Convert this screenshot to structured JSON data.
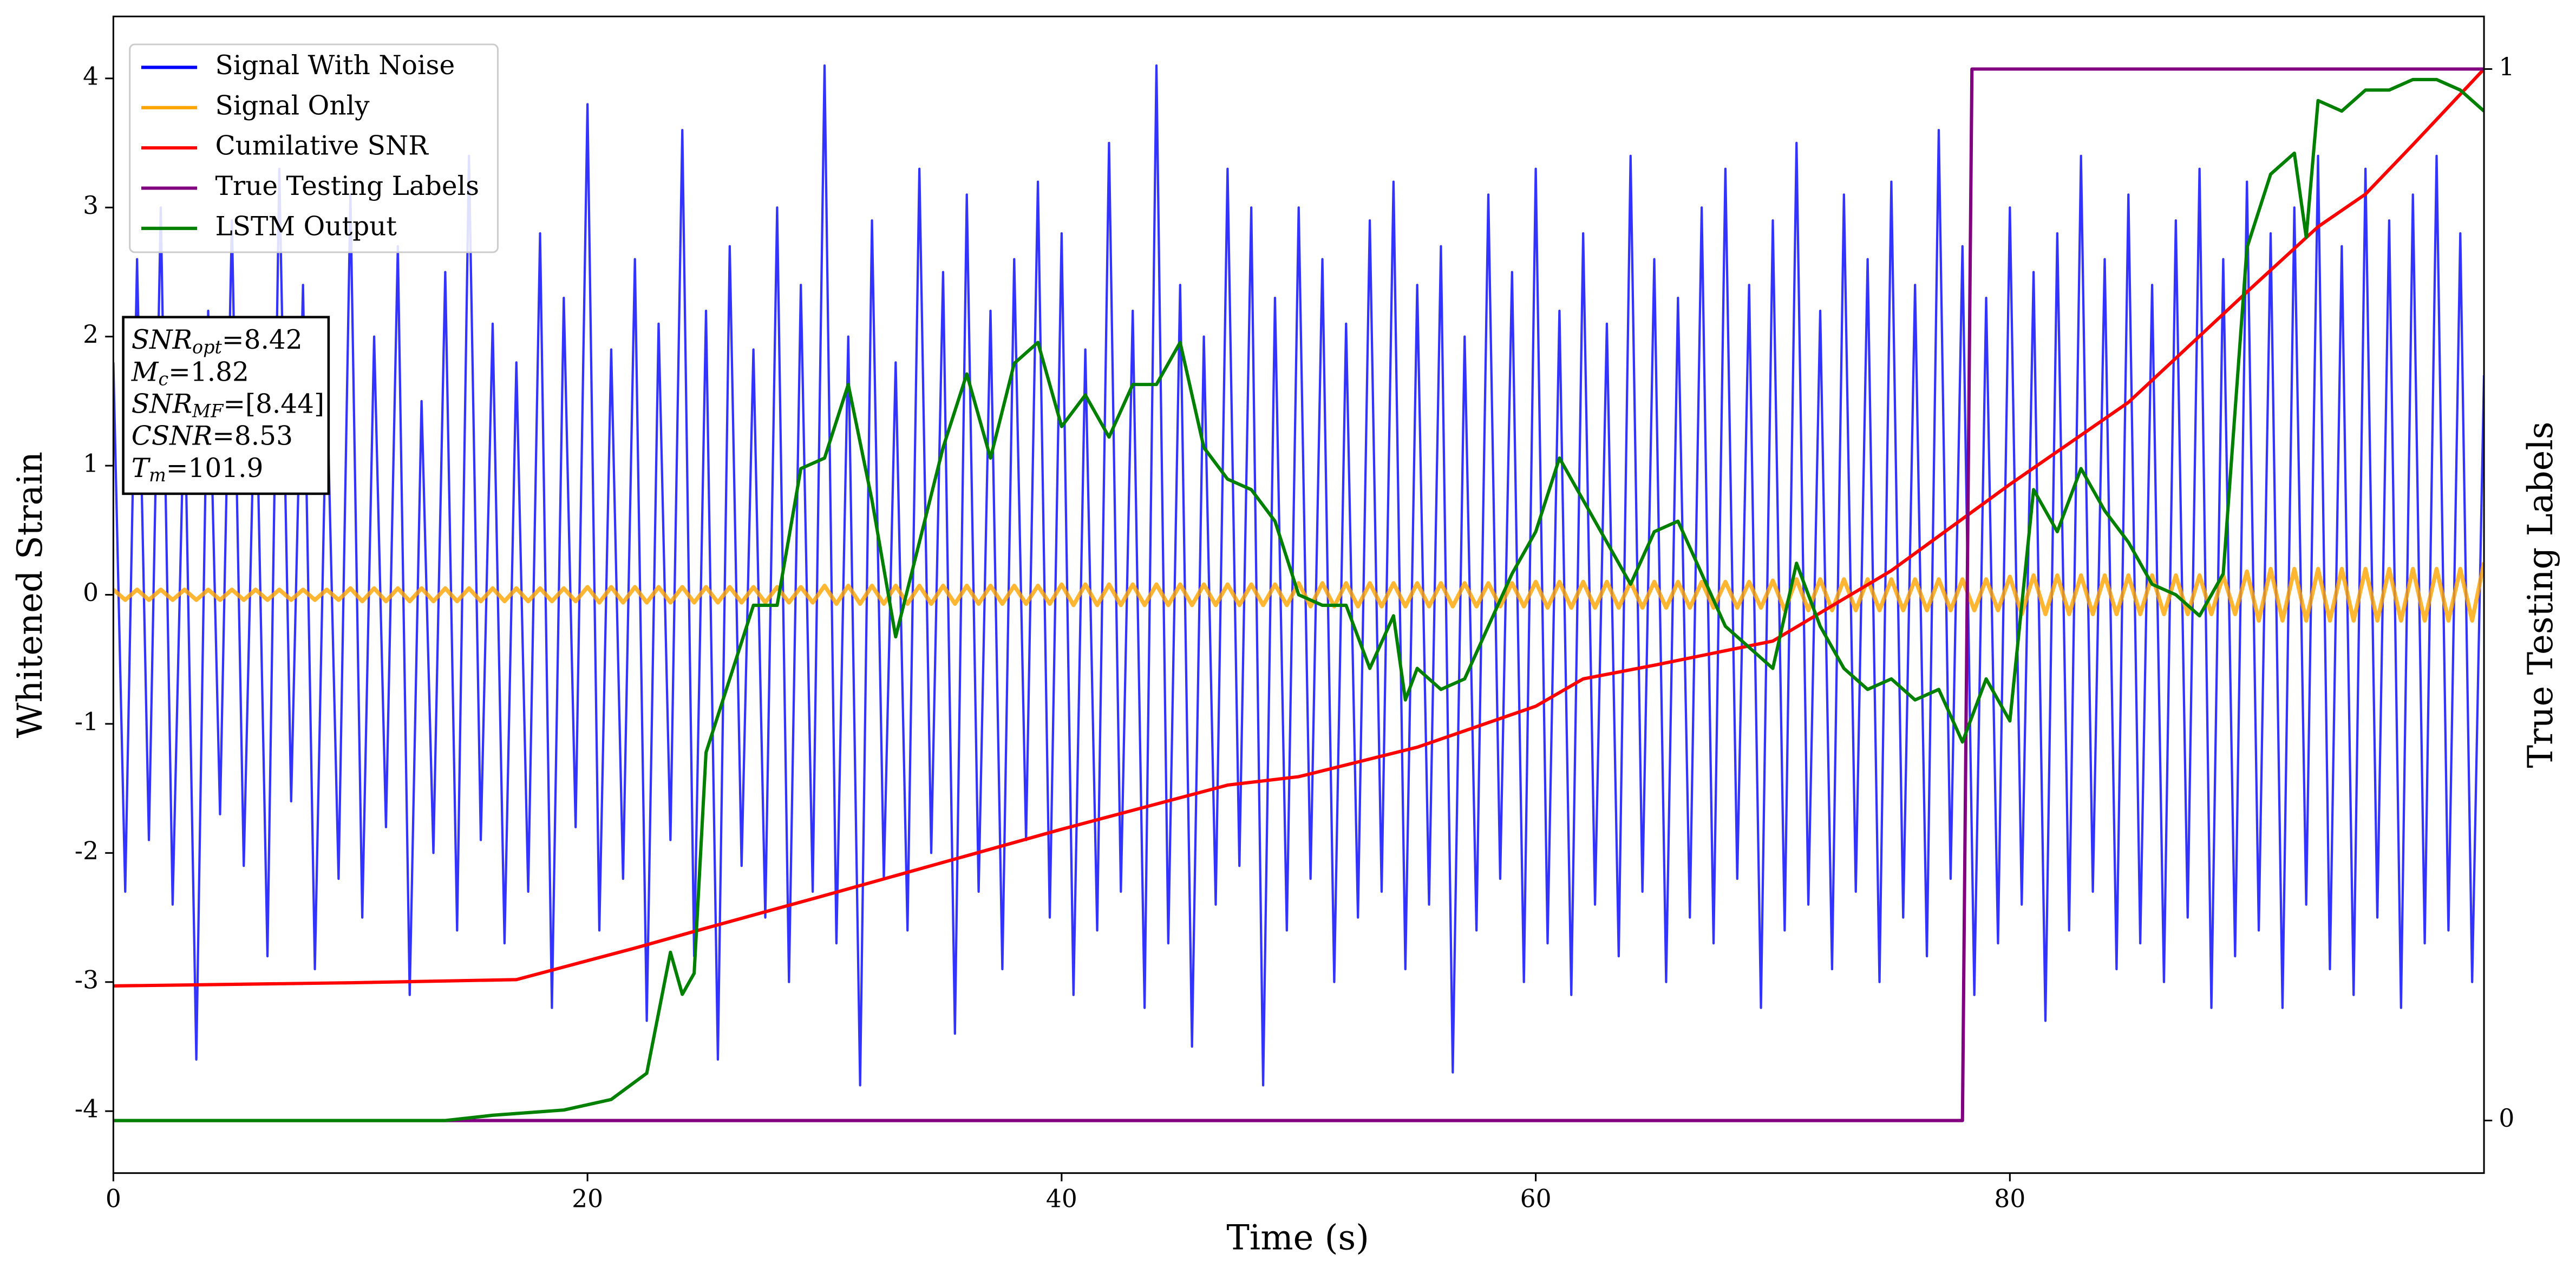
{
  "chart_data": {
    "type": "line",
    "xlabel": "Time (s)",
    "ylabel": "Whitened Strain",
    "y2label": "True Testing Labels",
    "xlim": [
      0,
      100
    ],
    "xticks": [
      0,
      20,
      40,
      60,
      80
    ],
    "ylim": [
      -4.48,
      4.48
    ],
    "yticks": [
      -4,
      -3,
      -2,
      -1,
      0,
      1,
      2,
      3,
      4
    ],
    "y2lim": [
      -0.05,
      1.05
    ],
    "y2ticks": [
      0,
      1
    ],
    "legend": "upper left",
    "x": [
      0,
      0.5,
      1,
      1.5,
      2,
      2.5,
      3,
      3.5,
      4,
      4.5,
      5,
      5.5,
      6,
      6.5,
      7,
      7.5,
      8,
      8.5,
      9,
      9.5,
      10,
      10.5,
      11,
      11.5,
      12,
      12.5,
      13,
      13.5,
      14,
      14.5,
      15,
      15.5,
      16,
      16.5,
      17,
      17.5,
      18,
      18.5,
      19,
      19.5,
      20,
      20.5,
      21,
      21.5,
      22,
      22.5,
      23,
      23.5,
      24,
      24.5,
      25,
      25.5,
      26,
      26.5,
      27,
      27.5,
      28,
      28.5,
      29,
      29.5,
      30,
      30.5,
      31,
      31.5,
      32,
      32.5,
      33,
      33.5,
      34,
      34.5,
      35,
      35.5,
      36,
      36.5,
      37,
      37.5,
      38,
      38.5,
      39,
      39.5,
      40,
      40.5,
      41,
      41.5,
      42,
      42.5,
      43,
      43.5,
      44,
      44.5,
      45,
      45.5,
      46,
      46.5,
      47,
      47.5,
      48,
      48.5,
      49,
      49.5,
      50,
      50.5,
      51,
      51.5,
      52,
      52.5,
      53,
      53.5,
      54,
      54.5,
      55,
      55.5,
      56,
      56.5,
      57,
      57.5,
      58,
      58.5,
      59,
      59.5,
      60,
      60.5,
      61,
      61.5,
      62,
      62.5,
      63,
      63.5,
      64,
      64.5,
      65,
      65.5,
      66,
      66.5,
      67,
      67.5,
      68,
      68.5,
      69,
      69.5,
      70,
      70.5,
      71,
      71.5,
      72,
      72.5,
      73,
      73.5,
      74,
      74.5,
      75,
      75.5,
      76,
      76.5,
      77,
      77.5,
      78,
      78.5,
      79,
      79.5,
      80,
      80.5,
      81,
      81.5,
      82,
      82.5,
      83,
      83.5,
      84,
      84.5,
      85,
      85.5,
      86,
      86.5,
      87,
      87.5,
      88,
      88.5,
      89,
      89.5,
      90,
      90.5,
      91,
      91.5,
      92,
      92.5,
      93,
      93.5,
      94,
      94.5,
      95,
      95.5,
      96,
      96.5,
      97,
      97.5,
      98,
      98.5,
      99,
      99.5,
      100
    ],
    "series": [
      {
        "name": "Signal With Noise",
        "color": "#0000ff",
        "alpha": 0.8,
        "width": 1.4,
        "values": [
          1.8,
          -2.3,
          2.6,
          -1.9,
          3.0,
          -2.4,
          1.6,
          -3.6,
          2.2,
          -1.7,
          2.9,
          -2.1,
          1.9,
          -2.8,
          3.3,
          -1.6,
          2.4,
          -2.9,
          1.7,
          -2.2,
          3.1,
          -2.5,
          2.0,
          -1.8,
          2.7,
          -3.1,
          1.5,
          -2.0,
          2.5,
          -2.6,
          3.4,
          -1.9,
          2.1,
          -2.7,
          1.8,
          -2.3,
          2.8,
          -3.2,
          2.3,
          -1.8,
          3.8,
          -2.6,
          1.9,
          -2.2,
          2.6,
          -3.3,
          2.1,
          -1.9,
          3.6,
          -2.8,
          2.2,
          -3.6,
          2.7,
          -2.1,
          1.9,
          -2.5,
          3.0,
          -3.0,
          2.4,
          -2.3,
          4.1,
          -2.7,
          2.0,
          -3.8,
          2.9,
          -2.2,
          1.8,
          -2.6,
          3.3,
          -2.0,
          2.5,
          -3.4,
          3.1,
          -2.3,
          2.2,
          -2.9,
          2.6,
          -1.9,
          3.2,
          -2.5,
          2.8,
          -3.1,
          1.9,
          -2.6,
          3.5,
          -2.3,
          2.2,
          -3.2,
          4.1,
          -2.7,
          2.4,
          -3.5,
          2.0,
          -2.4,
          3.3,
          -2.1,
          3.0,
          -3.8,
          2.3,
          -2.6,
          3.0,
          -2.2,
          2.6,
          -3.0,
          2.1,
          -2.5,
          2.9,
          -2.3,
          3.2,
          -2.9,
          2.4,
          -2.4,
          2.7,
          -3.7,
          2.0,
          -2.6,
          3.1,
          -2.2,
          2.5,
          -3.0,
          3.3,
          -2.7,
          2.2,
          -3.1,
          2.8,
          -2.4,
          2.1,
          -2.8,
          3.4,
          -2.3,
          2.6,
          -3.0,
          2.3,
          -2.5,
          3.0,
          -2.7,
          3.3,
          -2.2,
          2.4,
          -3.2,
          2.9,
          -2.6,
          3.5,
          -2.4,
          2.2,
          -2.9,
          3.1,
          -2.3,
          2.6,
          -3.0,
          3.2,
          -2.5,
          2.4,
          -2.8,
          3.6,
          -2.2,
          2.7,
          -3.1,
          2.3,
          -2.7,
          3.0,
          -2.4,
          2.5,
          -3.3,
          2.8,
          -2.6,
          3.4,
          -2.3,
          2.6,
          -2.9,
          3.1,
          -2.7,
          2.4,
          -3.0,
          2.9,
          -2.5,
          3.3,
          -3.2,
          2.6,
          -2.8,
          3.2,
          -2.6,
          2.8,
          -3.2,
          3.0,
          -2.4,
          3.4,
          -2.9,
          2.7,
          -3.1,
          3.3,
          -2.5,
          2.9,
          -3.2,
          3.1,
          -2.7,
          3.4,
          -2.6,
          2.8,
          -3.0,
          1.7
        ]
      },
      {
        "name": "Signal Only",
        "color": "#ffa500",
        "alpha": 0.8,
        "width": 2.5,
        "values": [
          0.04,
          -0.04,
          0.04,
          -0.04,
          0.04,
          -0.04,
          0.04,
          -0.04,
          0.04,
          -0.04,
          0.04,
          -0.04,
          0.04,
          -0.04,
          0.04,
          -0.04,
          0.04,
          -0.04,
          0.04,
          -0.04,
          0.05,
          -0.05,
          0.05,
          -0.05,
          0.05,
          -0.05,
          0.05,
          -0.05,
          0.05,
          -0.05,
          0.05,
          -0.05,
          0.05,
          -0.05,
          0.05,
          -0.05,
          0.05,
          -0.05,
          0.05,
          -0.05,
          0.06,
          -0.06,
          0.06,
          -0.06,
          0.06,
          -0.06,
          0.06,
          -0.06,
          0.06,
          -0.06,
          0.06,
          -0.06,
          0.06,
          -0.06,
          0.06,
          -0.06,
          0.06,
          -0.06,
          0.06,
          -0.06,
          0.07,
          -0.07,
          0.07,
          -0.07,
          0.07,
          -0.07,
          0.07,
          -0.07,
          0.07,
          -0.07,
          0.07,
          -0.07,
          0.07,
          -0.07,
          0.07,
          -0.07,
          0.07,
          -0.07,
          0.07,
          -0.07,
          0.08,
          -0.08,
          0.08,
          -0.08,
          0.08,
          -0.08,
          0.08,
          -0.08,
          0.08,
          -0.08,
          0.08,
          -0.08,
          0.08,
          -0.08,
          0.08,
          -0.08,
          0.08,
          -0.08,
          0.08,
          -0.08,
          0.09,
          -0.09,
          0.09,
          -0.09,
          0.09,
          -0.09,
          0.09,
          -0.09,
          0.09,
          -0.09,
          0.09,
          -0.09,
          0.09,
          -0.09,
          0.09,
          -0.09,
          0.09,
          -0.09,
          0.09,
          -0.09,
          0.1,
          -0.1,
          0.1,
          -0.1,
          0.1,
          -0.1,
          0.1,
          -0.1,
          0.1,
          -0.1,
          0.1,
          -0.1,
          0.1,
          -0.1,
          0.1,
          -0.1,
          0.1,
          -0.1,
          0.1,
          -0.1,
          0.11,
          -0.12,
          0.12,
          -0.12,
          0.12,
          -0.12,
          0.12,
          -0.12,
          0.12,
          -0.12,
          0.12,
          -0.12,
          0.12,
          -0.12,
          0.12,
          -0.12,
          0.12,
          -0.12,
          0.12,
          -0.12,
          0.14,
          -0.15,
          0.15,
          -0.15,
          0.15,
          -0.15,
          0.15,
          -0.15,
          0.15,
          -0.15,
          0.15,
          -0.15,
          0.15,
          -0.15,
          0.15,
          -0.15,
          0.15,
          -0.15,
          0.15,
          -0.15,
          0.18,
          -0.2,
          0.2,
          -0.2,
          0.2,
          -0.2,
          0.2,
          -0.2,
          0.2,
          -0.2,
          0.2,
          -0.2,
          0.2,
          -0.2,
          0.2,
          -0.2,
          0.2,
          -0.2,
          0.2,
          -0.2,
          0.25
        ]
      },
      {
        "name": "Cumilative SNR",
        "color": "#ff0000",
        "width": 2,
        "axis": "y2",
        "x": [
          0,
          10,
          17,
          20,
          22,
          25,
          30,
          40,
          47,
          50,
          55,
          60,
          62,
          65,
          70,
          75,
          80,
          85,
          90,
          93,
          95,
          97,
          100
        ],
        "values": [
          0.128,
          0.131,
          0.134,
          0.152,
          0.164,
          0.183,
          0.214,
          0.277,
          0.319,
          0.327,
          0.355,
          0.394,
          0.42,
          0.433,
          0.456,
          0.523,
          0.605,
          0.683,
          0.788,
          0.85,
          0.881,
          0.928,
          1.0
        ]
      },
      {
        "name": "True Testing Labels",
        "color": "#800080",
        "width": 2,
        "axis": "y2",
        "x": [
          0,
          78,
          78.4,
          100
        ],
        "values": [
          0,
          0,
          1,
          1
        ]
      },
      {
        "name": "LSTM Output",
        "color": "#008000",
        "width": 2,
        "axis": "y2",
        "x": [
          0,
          14,
          16,
          19,
          21,
          22.5,
          23.5,
          24,
          24.5,
          25,
          26,
          27,
          28,
          29,
          30,
          31,
          32,
          33,
          34,
          35,
          36,
          37,
          38,
          39,
          40,
          41,
          42,
          43,
          44,
          45,
          46,
          47,
          48,
          49,
          50,
          51,
          52,
          53,
          54,
          54.5,
          55,
          56,
          57,
          58,
          59,
          60,
          61,
          62,
          63,
          64,
          65,
          66,
          67,
          68,
          69,
          70,
          71,
          72,
          73,
          74,
          75,
          76,
          77,
          78,
          79,
          80,
          81,
          82,
          83,
          84,
          85,
          86,
          87,
          88,
          89,
          90,
          91,
          92,
          92.5,
          93,
          94,
          95,
          96,
          97,
          98,
          99,
          100
        ],
        "values": [
          0,
          0,
          0.005,
          0.01,
          0.02,
          0.045,
          0.16,
          0.12,
          0.14,
          0.35,
          0.42,
          0.49,
          0.49,
          0.62,
          0.63,
          0.7,
          0.59,
          0.46,
          0.55,
          0.64,
          0.71,
          0.63,
          0.72,
          0.74,
          0.66,
          0.69,
          0.65,
          0.7,
          0.7,
          0.74,
          0.64,
          0.61,
          0.6,
          0.57,
          0.5,
          0.49,
          0.49,
          0.43,
          0.48,
          0.4,
          0.43,
          0.41,
          0.42,
          0.47,
          0.52,
          0.56,
          0.63,
          0.59,
          0.55,
          0.51,
          0.56,
          0.57,
          0.52,
          0.47,
          0.45,
          0.43,
          0.53,
          0.47,
          0.43,
          0.41,
          0.42,
          0.4,
          0.41,
          0.36,
          0.42,
          0.38,
          0.6,
          0.56,
          0.62,
          0.58,
          0.55,
          0.51,
          0.5,
          0.48,
          0.52,
          0.83,
          0.9,
          0.92,
          0.84,
          0.97,
          0.96,
          0.98,
          0.98,
          0.99,
          0.99,
          0.98,
          0.96
        ]
      }
    ],
    "annotations": [
      {
        "var": "SNR",
        "sub": "opt",
        "text": "=8.42"
      },
      {
        "var": "M",
        "sub": "c",
        "text": "=1.82"
      },
      {
        "var": "SNR",
        "sub": "MF",
        "text": "=[8.44]"
      },
      {
        "var": "CSNR",
        "text": "=8.53"
      },
      {
        "var": "T",
        "sub": "m",
        "text": "=101.9"
      }
    ]
  }
}
